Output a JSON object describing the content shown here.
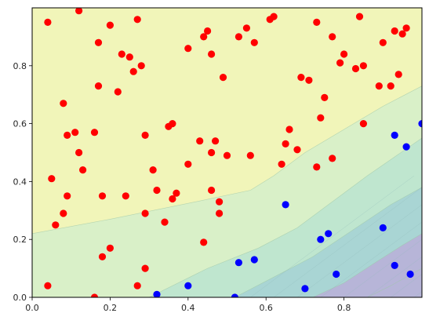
{
  "chart_data": {
    "type": "scatter",
    "title": "",
    "xlabel": "",
    "ylabel": "",
    "xlim": [
      0,
      1
    ],
    "ylim": [
      0,
      1
    ],
    "x_ticks": [
      "0.0",
      "0.2",
      "0.4",
      "0.6",
      "0.8"
    ],
    "x_tick_values": [
      0,
      0.2,
      0.4,
      0.6,
      0.8
    ],
    "y_ticks": [
      "0.0",
      "0.2",
      "0.4",
      "0.6",
      "0.8"
    ],
    "y_tick_values": [
      0,
      0.2,
      0.4,
      0.6,
      0.8
    ],
    "grid": false,
    "legend": "none",
    "background": {
      "type": "filled-contour",
      "description_levels": [
        {
          "color": "#f1f5b9",
          "boundary": [
            [
              0,
              0.22
            ],
            [
              0.2,
              0.27
            ],
            [
              0.42,
              0.33
            ],
            [
              0.56,
              0.37
            ],
            [
              0.62,
              0.42
            ],
            [
              0.7,
              0.5
            ],
            [
              0.8,
              0.58
            ],
            [
              0.9,
              0.66
            ],
            [
              1,
              0.73
            ]
          ]
        },
        {
          "color": "#d9f0c8",
          "boundary": [
            [
              0.3,
              0
            ],
            [
              0.45,
              0.1
            ],
            [
              0.58,
              0.17
            ],
            [
              0.68,
              0.24
            ],
            [
              0.76,
              0.32
            ],
            [
              0.86,
              0.42
            ],
            [
              1,
              0.55
            ]
          ]
        },
        {
          "color": "#bfe6cf",
          "boundary": [
            [
              0.52,
              0
            ],
            [
              0.62,
              0.07
            ],
            [
              0.72,
              0.14
            ],
            [
              0.82,
              0.23
            ],
            [
              0.92,
              0.32
            ],
            [
              1,
              0.38
            ]
          ]
        },
        {
          "color": "#a9d5d4",
          "boundary": [
            [
              0.72,
              0
            ],
            [
              0.8,
              0.05
            ],
            [
              0.88,
              0.12
            ],
            [
              0.95,
              0.18
            ],
            [
              1,
              0.22
            ]
          ]
        },
        {
          "color": "#b7b5d8",
          "boundary": [
            [
              0.86,
              0
            ],
            [
              0.92,
              0.04
            ],
            [
              1,
              0.1
            ]
          ]
        }
      ]
    },
    "series": [
      {
        "color": "#ff0000",
        "points": [
          [
            0.04,
            0.95
          ],
          [
            0.12,
            0.99
          ],
          [
            0.27,
            0.96
          ],
          [
            0.45,
            0.92
          ],
          [
            0.55,
            0.93
          ],
          [
            0.62,
            0.97
          ],
          [
            0.73,
            0.95
          ],
          [
            0.84,
            0.97
          ],
          [
            0.9,
            0.88
          ],
          [
            0.93,
            0.92
          ],
          [
            0.95,
            0.91
          ],
          [
            0.96,
            0.93
          ],
          [
            0.17,
            0.88
          ],
          [
            0.2,
            0.94
          ],
          [
            0.23,
            0.84
          ],
          [
            0.25,
            0.83
          ],
          [
            0.28,
            0.8
          ],
          [
            0.26,
            0.78
          ],
          [
            0.4,
            0.86
          ],
          [
            0.44,
            0.9
          ],
          [
            0.46,
            0.84
          ],
          [
            0.53,
            0.9
          ],
          [
            0.57,
            0.88
          ],
          [
            0.61,
            0.96
          ],
          [
            0.77,
            0.9
          ],
          [
            0.08,
            0.67
          ],
          [
            0.17,
            0.73
          ],
          [
            0.22,
            0.71
          ],
          [
            0.49,
            0.76
          ],
          [
            0.69,
            0.76
          ],
          [
            0.71,
            0.75
          ],
          [
            0.75,
            0.69
          ],
          [
            0.79,
            0.81
          ],
          [
            0.8,
            0.84
          ],
          [
            0.83,
            0.79
          ],
          [
            0.85,
            0.8
          ],
          [
            0.89,
            0.73
          ],
          [
            0.92,
            0.73
          ],
          [
            0.94,
            0.77
          ],
          [
            0.09,
            0.56
          ],
          [
            0.11,
            0.57
          ],
          [
            0.16,
            0.57
          ],
          [
            0.29,
            0.56
          ],
          [
            0.35,
            0.59
          ],
          [
            0.36,
            0.6
          ],
          [
            0.43,
            0.54
          ],
          [
            0.47,
            0.54
          ],
          [
            0.56,
            0.49
          ],
          [
            0.65,
            0.53
          ],
          [
            0.66,
            0.58
          ],
          [
            0.74,
            0.62
          ],
          [
            0.85,
            0.6
          ],
          [
            0.05,
            0.41
          ],
          [
            0.12,
            0.5
          ],
          [
            0.13,
            0.44
          ],
          [
            0.31,
            0.44
          ],
          [
            0.4,
            0.46
          ],
          [
            0.46,
            0.5
          ],
          [
            0.5,
            0.49
          ],
          [
            0.64,
            0.46
          ],
          [
            0.68,
            0.51
          ],
          [
            0.73,
            0.45
          ],
          [
            0.77,
            0.48
          ],
          [
            0.09,
            0.35
          ],
          [
            0.18,
            0.35
          ],
          [
            0.24,
            0.35
          ],
          [
            0.32,
            0.37
          ],
          [
            0.36,
            0.34
          ],
          [
            0.37,
            0.36
          ],
          [
            0.46,
            0.37
          ],
          [
            0.48,
            0.33
          ],
          [
            0.08,
            0.29
          ],
          [
            0.06,
            0.25
          ],
          [
            0.29,
            0.29
          ],
          [
            0.34,
            0.26
          ],
          [
            0.48,
            0.29
          ],
          [
            0.2,
            0.17
          ],
          [
            0.18,
            0.14
          ],
          [
            0.44,
            0.19
          ],
          [
            0.29,
            0.1
          ],
          [
            0.27,
            0.04
          ],
          [
            0.04,
            0.04
          ],
          [
            0.16,
            0.0
          ]
        ]
      },
      {
        "color": "#0000ff",
        "points": [
          [
            0.93,
            0.56
          ],
          [
            1,
            0.6
          ],
          [
            0.96,
            0.52
          ],
          [
            0.65,
            0.32
          ],
          [
            0.76,
            0.22
          ],
          [
            0.74,
            0.2
          ],
          [
            0.9,
            0.24
          ],
          [
            0.53,
            0.12
          ],
          [
            0.57,
            0.13
          ],
          [
            0.78,
            0.08
          ],
          [
            0.93,
            0.11
          ],
          [
            0.97,
            0.08
          ],
          [
            0.4,
            0.04
          ],
          [
            0.32,
            0.01
          ],
          [
            0.52,
            0.0
          ],
          [
            0.7,
            0.03
          ]
        ]
      }
    ]
  }
}
